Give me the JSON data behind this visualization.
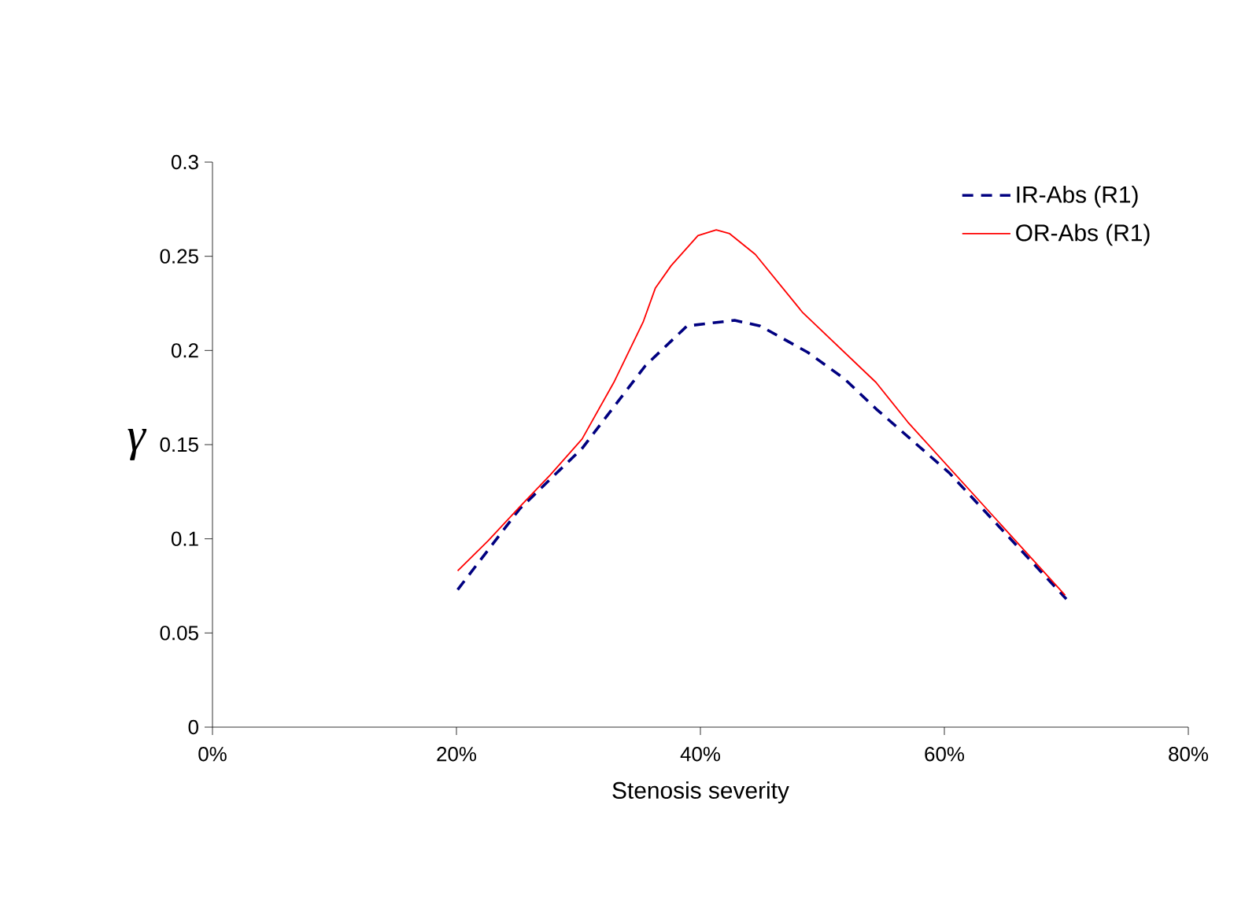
{
  "chart_data": {
    "type": "line",
    "xlabel": "Stenosis severity",
    "ylabel": "γ",
    "xlim": [
      0,
      80
    ],
    "xticks": [
      {
        "value": 0,
        "label": "0%"
      },
      {
        "value": 20,
        "label": "20%"
      },
      {
        "value": 40,
        "label": "40%"
      },
      {
        "value": 60,
        "label": "60%"
      },
      {
        "value": 80,
        "label": "80%"
      }
    ],
    "ylim": [
      0,
      0.3
    ],
    "yticks": [
      0,
      0.05,
      0.1,
      0.15,
      0.2,
      0.25,
      0.3
    ],
    "grid": false,
    "legend": "top right",
    "marker": "none",
    "series": [
      {
        "name": "IR-Abs (R1)",
        "color": "#000080",
        "line_style": "dashed",
        "x": [
          20.1,
          25.2,
          30.3,
          35.5,
          38.9,
          42.8,
          44.9,
          48.8,
          51.8,
          54.4,
          60.4,
          70
        ],
        "values": [
          0.073,
          0.116,
          0.148,
          0.192,
          0.213,
          0.216,
          0.213,
          0.199,
          0.185,
          0.169,
          0.135,
          0.068
        ]
      },
      {
        "name": "OR-Abs (R1)",
        "color": "#ff0000",
        "line_style": "solid",
        "x": [
          20.1,
          22.6,
          25.2,
          27.7,
          30.3,
          32.9,
          35.3,
          36.3,
          37.6,
          39.8,
          41.3,
          42.4,
          44.5,
          48.4,
          54.4,
          57,
          69.9
        ],
        "values": [
          0.083,
          0.099,
          0.117,
          0.134,
          0.153,
          0.183,
          0.215,
          0.233,
          0.245,
          0.261,
          0.264,
          0.262,
          0.251,
          0.22,
          0.183,
          0.162,
          0.07
        ]
      }
    ]
  }
}
